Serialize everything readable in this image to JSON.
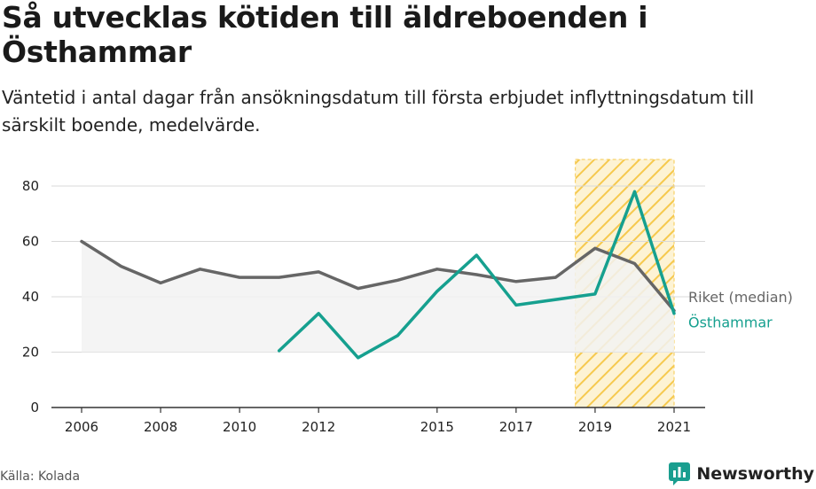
{
  "title": "Så utvecklas kötiden till äldreboenden i Östhammar",
  "subtitle": "Väntetid i antal dagar från ansökningsdatum till första erbjudet inflyttningsdatum till särskilt boende, medelvärde.",
  "source": "Källa: Kolada",
  "brand": {
    "name": "Newsworthy",
    "icon": "newsworthy-logo-icon",
    "color": "#1a9e8f"
  },
  "colors": {
    "riket": "#666666",
    "osthammar": "#16a08f",
    "area": "#f2f2f2",
    "highlight": "#f6c94e",
    "grid": "#d8d8d8"
  },
  "chart_data": {
    "type": "line",
    "x_ticks": [
      2006,
      2008,
      2010,
      2012,
      2015,
      2017,
      2019,
      2021
    ],
    "y_ticks": [
      0,
      20,
      40,
      60,
      80
    ],
    "xlim": [
      2006,
      2021
    ],
    "ylim": [
      0,
      80
    ],
    "grid": true,
    "highlight_range": [
      2018.5,
      2021
    ],
    "series": [
      {
        "name": "Riket (median)",
        "color": "#666666",
        "shaded": true,
        "points": [
          [
            2006,
            60
          ],
          [
            2007,
            51
          ],
          [
            2008,
            45
          ],
          [
            2009,
            50
          ],
          [
            2010,
            47
          ],
          [
            2011,
            47
          ],
          [
            2012,
            49
          ],
          [
            2013,
            43
          ],
          [
            2014,
            46
          ],
          [
            2015,
            50
          ],
          [
            2016,
            48
          ],
          [
            2017,
            45.5
          ],
          [
            2018,
            47
          ],
          [
            2019,
            57.5
          ],
          [
            2020,
            52
          ],
          [
            2021,
            35
          ]
        ]
      },
      {
        "name": "Östhammar",
        "color": "#16a08f",
        "shaded": false,
        "points": [
          [
            2011,
            20.5
          ],
          [
            2012,
            34
          ],
          [
            2013,
            18
          ],
          [
            2014,
            26
          ],
          [
            2015,
            42
          ],
          [
            2016,
            55
          ],
          [
            2017,
            37
          ],
          [
            2019,
            41
          ],
          [
            2020,
            78
          ],
          [
            2021,
            34
          ]
        ]
      }
    ]
  }
}
